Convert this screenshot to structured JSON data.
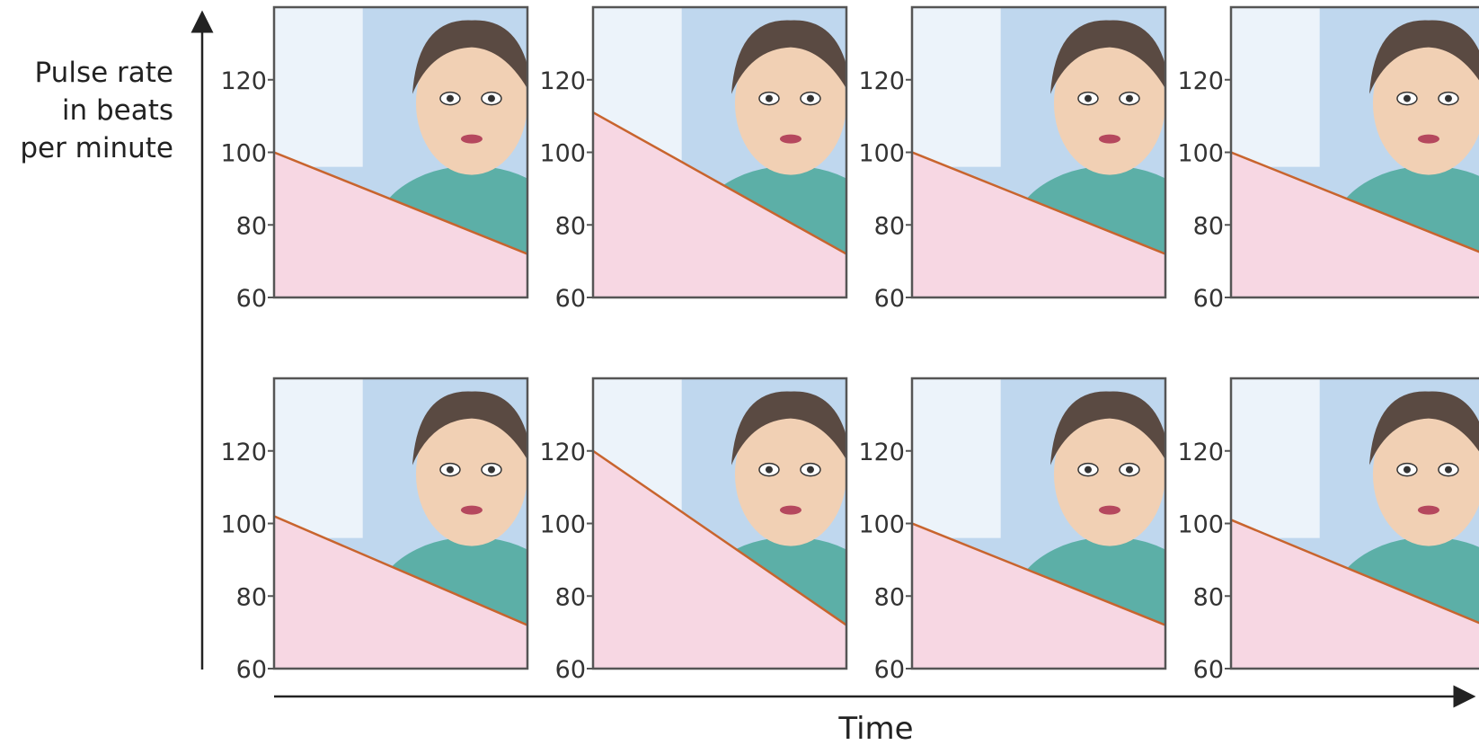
{
  "chart_data": {
    "type": "area",
    "ylabel_lines": [
      "Pulse rate",
      "in beats",
      "per minute"
    ],
    "xlabel": "Time",
    "yticks": [
      60,
      80,
      100,
      120
    ],
    "ylim": [
      60,
      140
    ],
    "series": [
      {
        "values": [
          100,
          72
        ]
      },
      {
        "values": [
          111,
          72
        ]
      },
      {
        "values": [
          100,
          72
        ]
      },
      {
        "values": [
          100,
          72
        ]
      },
      {
        "values": [
          102,
          72
        ]
      },
      {
        "values": [
          120,
          72
        ]
      },
      {
        "values": [
          100,
          72
        ]
      },
      {
        "values": [
          101,
          72
        ]
      }
    ],
    "colors": {
      "area_fill": "#f7d7e3",
      "pulse_line": "#c8642e",
      "wall_blue": "#a9c9e8",
      "shirt_teal": "#4aa89a",
      "skin": "#f1d0b4",
      "hair": "#5a4a42"
    }
  }
}
